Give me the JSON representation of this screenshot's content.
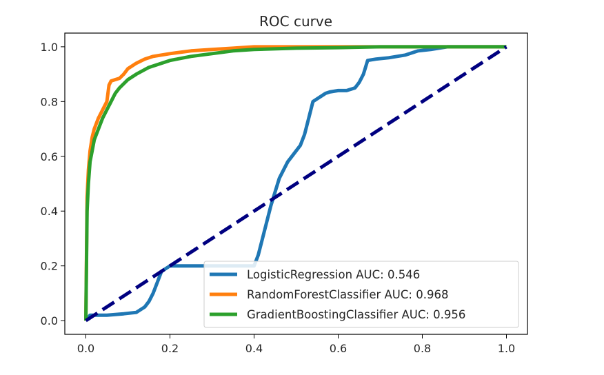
{
  "chart_data": {
    "type": "line",
    "title": "ROC curve",
    "xlabel": "",
    "ylabel": "",
    "xlim": [
      -0.05,
      1.05
    ],
    "ylim": [
      -0.05,
      1.05
    ],
    "xticks": [
      0.0,
      0.2,
      0.4,
      0.6,
      0.8,
      1.0
    ],
    "yticks": [
      0.0,
      0.2,
      0.4,
      0.6,
      0.8,
      1.0
    ],
    "xtick_labels": [
      "0.0",
      "0.2",
      "0.4",
      "0.6",
      "0.8",
      "1.0"
    ],
    "ytick_labels": [
      "0.0",
      "0.2",
      "0.4",
      "0.6",
      "0.8",
      "1.0"
    ],
    "grid": false,
    "legend_position": "lower-right",
    "series": [
      {
        "name": "LogisticRegression AUC: 0.546",
        "color": "#1f77b4",
        "x": [
          0.0,
          0.01,
          0.05,
          0.09,
          0.12,
          0.14,
          0.15,
          0.16,
          0.17,
          0.18,
          0.2,
          0.27,
          0.36,
          0.4,
          0.41,
          0.42,
          0.43,
          0.44,
          0.45,
          0.46,
          0.47,
          0.48,
          0.49,
          0.5,
          0.51,
          0.52,
          0.53,
          0.54,
          0.55,
          0.56,
          0.57,
          0.58,
          0.6,
          0.62,
          0.64,
          0.65,
          0.66,
          0.67,
          0.69,
          0.72,
          0.76,
          0.79,
          0.82,
          0.86,
          0.9,
          1.0
        ],
        "y": [
          0.0,
          0.02,
          0.02,
          0.025,
          0.03,
          0.05,
          0.07,
          0.1,
          0.14,
          0.18,
          0.2,
          0.2,
          0.2,
          0.2,
          0.24,
          0.3,
          0.36,
          0.42,
          0.47,
          0.52,
          0.55,
          0.58,
          0.6,
          0.62,
          0.64,
          0.68,
          0.74,
          0.8,
          0.81,
          0.82,
          0.83,
          0.835,
          0.84,
          0.84,
          0.85,
          0.87,
          0.9,
          0.95,
          0.955,
          0.96,
          0.97,
          0.985,
          0.99,
          1.0,
          1.0,
          1.0
        ]
      },
      {
        "name": "RandomForestClassifier AUC: 0.968",
        "color": "#ff7f0e",
        "x": [
          0.0,
          0.003,
          0.006,
          0.01,
          0.015,
          0.02,
          0.03,
          0.04,
          0.05,
          0.055,
          0.06,
          0.07,
          0.08,
          0.09,
          0.1,
          0.12,
          0.14,
          0.16,
          0.2,
          0.25,
          0.3,
          0.35,
          0.4,
          0.5,
          0.6,
          0.8,
          1.0
        ],
        "y": [
          0.0,
          0.45,
          0.55,
          0.62,
          0.67,
          0.7,
          0.74,
          0.77,
          0.8,
          0.86,
          0.875,
          0.88,
          0.885,
          0.9,
          0.92,
          0.94,
          0.955,
          0.965,
          0.975,
          0.985,
          0.99,
          0.995,
          1.0,
          1.0,
          1.0,
          1.0,
          1.0
        ]
      },
      {
        "name": "GradientBoostingClassifier AUC: 0.956",
        "color": "#2ca02c",
        "x": [
          0.0,
          0.003,
          0.006,
          0.01,
          0.015,
          0.02,
          0.03,
          0.04,
          0.05,
          0.06,
          0.07,
          0.08,
          0.1,
          0.12,
          0.15,
          0.2,
          0.25,
          0.3,
          0.35,
          0.4,
          0.5,
          0.6,
          0.7,
          0.8,
          0.9,
          1.0
        ],
        "y": [
          0.0,
          0.4,
          0.5,
          0.58,
          0.62,
          0.66,
          0.7,
          0.74,
          0.77,
          0.8,
          0.83,
          0.85,
          0.88,
          0.9,
          0.925,
          0.95,
          0.965,
          0.975,
          0.985,
          0.99,
          0.995,
          0.997,
          1.0,
          1.0,
          1.0,
          1.0
        ]
      }
    ],
    "reference_line": {
      "x": [
        0.0,
        1.0
      ],
      "y": [
        0.0,
        1.0
      ],
      "color": "#000080",
      "style": "dashed"
    }
  }
}
